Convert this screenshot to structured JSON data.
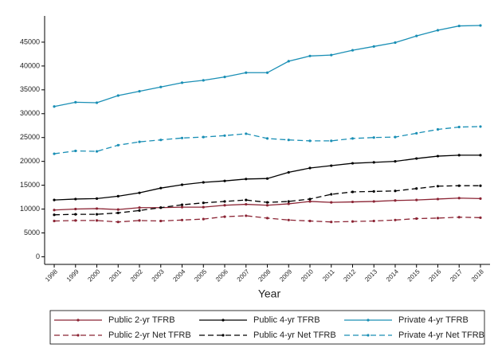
{
  "chart_data": {
    "type": "line",
    "x_label": "Year",
    "x": [
      1998,
      1999,
      2000,
      2001,
      2002,
      2003,
      2004,
      2005,
      2006,
      2007,
      2008,
      2009,
      2010,
      2011,
      2012,
      2013,
      2014,
      2015,
      2016,
      2017,
      2018
    ],
    "xlim": [
      1997.55,
      2018.45
    ],
    "ylim": [
      -1600,
      50500
    ],
    "yticks": [
      0,
      5000,
      10000,
      15000,
      20000,
      25000,
      30000,
      35000,
      40000,
      45000
    ],
    "series": [
      {
        "name": "Public 2-yr TFRB",
        "color": "#8b2434",
        "dashed": false,
        "values": [
          9800,
          10000,
          10100,
          9900,
          10300,
          10300,
          10400,
          10400,
          10800,
          11000,
          10800,
          11100,
          11600,
          11400,
          11500,
          11600,
          11800,
          11900,
          12100,
          12300,
          12200
        ]
      },
      {
        "name": "Public 4-yr TFRB",
        "color": "#000000",
        "dashed": false,
        "values": [
          11900,
          12100,
          12200,
          12700,
          13400,
          14400,
          15100,
          15600,
          15900,
          16300,
          16400,
          17700,
          18600,
          19100,
          19600,
          19800,
          20000,
          20600,
          21100,
          21300,
          21300
        ]
      },
      {
        "name": "Private 4-yr TFRB",
        "color": "#1a8fb5",
        "dashed": false,
        "values": [
          31500,
          32400,
          32300,
          33800,
          34700,
          35600,
          36500,
          37000,
          37700,
          38600,
          38600,
          41000,
          42100,
          42300,
          43300,
          44100,
          44900,
          46300,
          47500,
          48400,
          48500
        ]
      },
      {
        "name": "Public 2-yr Net TFRB",
        "color": "#8b2434",
        "dashed": true,
        "values": [
          7500,
          7600,
          7600,
          7300,
          7600,
          7500,
          7700,
          7900,
          8400,
          8600,
          8100,
          7700,
          7500,
          7300,
          7400,
          7500,
          7700,
          8000,
          8100,
          8300,
          8200
        ]
      },
      {
        "name": "Public 4-yr Net TFRB",
        "color": "#000000",
        "dashed": true,
        "values": [
          8800,
          8900,
          8900,
          9200,
          9700,
          10300,
          10900,
          11300,
          11600,
          11900,
          11400,
          11600,
          12100,
          13100,
          13600,
          13700,
          13800,
          14300,
          14800,
          14900,
          14900
        ]
      },
      {
        "name": "Private 4-yr Net TFRB",
        "color": "#1a8fb5",
        "dashed": true,
        "values": [
          21600,
          22200,
          22100,
          23400,
          24100,
          24500,
          24900,
          25100,
          25400,
          25800,
          24800,
          24500,
          24300,
          24300,
          24800,
          25000,
          25100,
          25900,
          26700,
          27200,
          27300
        ]
      }
    ]
  }
}
